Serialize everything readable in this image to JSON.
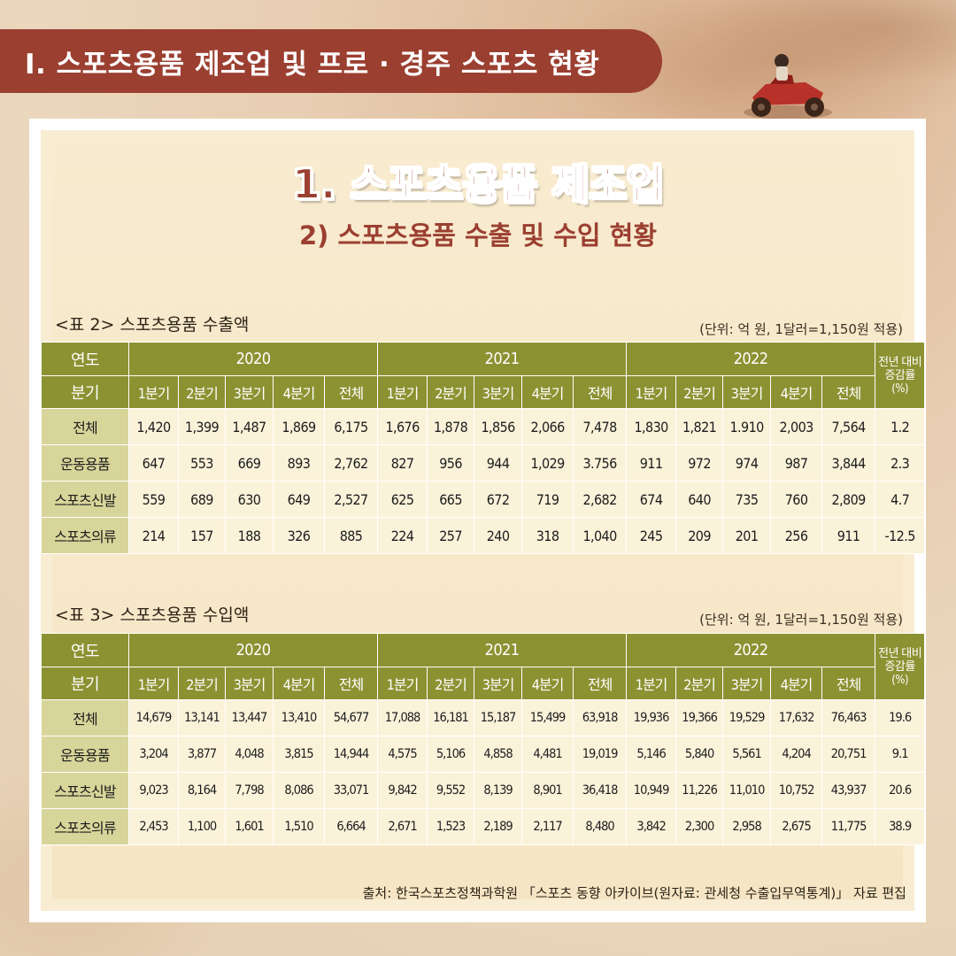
{
  "banner": "I. 스포츠용품 제조업 및 프로 · 경주 스포츠 현황",
  "main_title": "1. 스포츠용품 제조업",
  "sub_title": "2) 스포츠용품 수출 및 수입 현황",
  "colors": {
    "banner": "#9b3f31",
    "header": "#8c9232",
    "row_label": "#d8d59a",
    "cell": "#fbf2da"
  },
  "icons": {
    "decoration": "atv-rider-illustration"
  },
  "export_table": {
    "caption": "<표 2> 스포츠용품 수출액",
    "unit": "(단위: 억 원, 1달러=1,150원 적용)",
    "year_label": "연도",
    "quarter_label": "분기",
    "years": [
      "2020",
      "2021",
      "2022"
    ],
    "change_label": "전년 대비 증감률 (%)",
    "quarters": [
      "1분기",
      "2분기",
      "3분기",
      "4분기",
      "전체"
    ],
    "rows": [
      {
        "label": "전체",
        "values": [
          "1,420",
          "1,399",
          "1,487",
          "1,869",
          "6,175",
          "1,676",
          "1,878",
          "1,856",
          "2,066",
          "7,478",
          "1,830",
          "1,821",
          "1.910",
          "2,003",
          "7,564",
          "1.2"
        ]
      },
      {
        "label": "운동용품",
        "values": [
          "647",
          "553",
          "669",
          "893",
          "2,762",
          "827",
          "956",
          "944",
          "1,029",
          "3.756",
          "911",
          "972",
          "974",
          "987",
          "3,844",
          "2.3"
        ]
      },
      {
        "label": "스포츠신발",
        "values": [
          "559",
          "689",
          "630",
          "649",
          "2,527",
          "625",
          "665",
          "672",
          "719",
          "2,682",
          "674",
          "640",
          "735",
          "760",
          "2,809",
          "4.7"
        ]
      },
      {
        "label": "스포츠의류",
        "values": [
          "214",
          "157",
          "188",
          "326",
          "885",
          "224",
          "257",
          "240",
          "318",
          "1,040",
          "245",
          "209",
          "201",
          "256",
          "911",
          "-12.5"
        ]
      }
    ]
  },
  "import_table": {
    "caption": "<표 3> 스포츠용품 수입액",
    "unit": "(단위: 억 원, 1달러=1,150원 적용)",
    "year_label": "연도",
    "quarter_label": "분기",
    "years": [
      "2020",
      "2021",
      "2022"
    ],
    "change_label": "전년 대비 증감률 (%)",
    "quarters": [
      "1분기",
      "2분기",
      "3분기",
      "4분기",
      "전체"
    ],
    "rows": [
      {
        "label": "전체",
        "values": [
          "14,679",
          "13,141",
          "13,447",
          "13,410",
          "54,677",
          "17,088",
          "16,181",
          "15,187",
          "15,499",
          "63,918",
          "19,936",
          "19,366",
          "19,529",
          "17,632",
          "76,463",
          "19.6"
        ]
      },
      {
        "label": "운동용품",
        "values": [
          "3,204",
          "3,877",
          "4,048",
          "3,815",
          "14,944",
          "4,575",
          "5,106",
          "4,858",
          "4,481",
          "19,019",
          "5,146",
          "5,840",
          "5,561",
          "4,204",
          "20,751",
          "9.1"
        ]
      },
      {
        "label": "스포츠신발",
        "values": [
          "9,023",
          "8,164",
          "7,798",
          "8,086",
          "33,071",
          "9,842",
          "9,552",
          "8,139",
          "8,901",
          "36,418",
          "10,949",
          "11,226",
          "11,010",
          "10,752",
          "43,937",
          "20.6"
        ]
      },
      {
        "label": "스포츠의류",
        "values": [
          "2,453",
          "1,100",
          "1,601",
          "1,510",
          "6,664",
          "2,671",
          "1,523",
          "2,189",
          "2,117",
          "8,480",
          "3,842",
          "2,300",
          "2,958",
          "2,675",
          "11,775",
          "38.9"
        ]
      }
    ]
  },
  "source": "출처: 한국스포츠정책과학원 「스포츠 동향 아카이브(원자료: 관세청 수출입무역통계)」 자료 편집"
}
